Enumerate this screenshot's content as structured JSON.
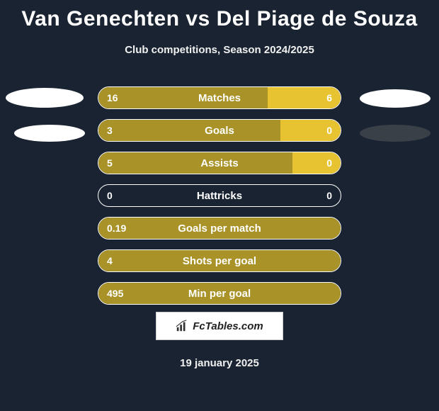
{
  "title": "Van Genechten vs Del Piage de Souza",
  "subtitle": "Club competitions, Season 2024/2025",
  "footer_date": "19 january 2025",
  "logo_text": "FcTables.com",
  "colors": {
    "background": "#1a2332",
    "left_bar": "#a99227",
    "right_bar": "#e7c331",
    "border": "#ffffff",
    "text": "#ffffff"
  },
  "stats": [
    {
      "label": "Matches",
      "left_val": "16",
      "right_val": "6",
      "left_pct": 70,
      "right_pct": 30
    },
    {
      "label": "Goals",
      "left_val": "3",
      "right_val": "0",
      "left_pct": 75,
      "right_pct": 25
    },
    {
      "label": "Assists",
      "left_val": "5",
      "right_val": "0",
      "left_pct": 80,
      "right_pct": 20
    },
    {
      "label": "Hattricks",
      "left_val": "0",
      "right_val": "0",
      "left_pct": 0,
      "right_pct": 0
    },
    {
      "label": "Goals per match",
      "left_val": "0.19",
      "right_val": "",
      "left_pct": 100,
      "right_pct": 0
    },
    {
      "label": "Shots per goal",
      "left_val": "4",
      "right_val": "",
      "left_pct": 100,
      "right_pct": 0
    },
    {
      "label": "Min per goal",
      "left_val": "495",
      "right_val": "",
      "left_pct": 100,
      "right_pct": 0
    }
  ]
}
